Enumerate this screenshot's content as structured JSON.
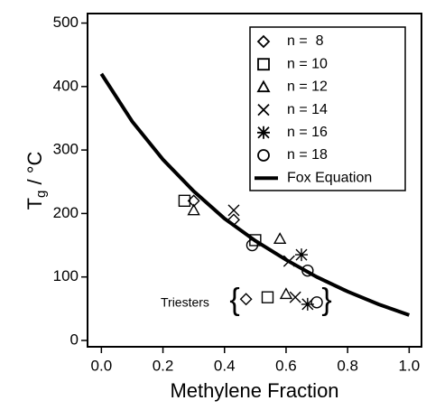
{
  "chart_data": {
    "type": "scatter",
    "x_label": "Methylene Fraction",
    "y_label": {
      "main": "T",
      "sub": "g",
      "unit": " / °C"
    },
    "xlim": [
      -0.045,
      1.04
    ],
    "ylim": [
      -10,
      515
    ],
    "xticks": [
      {
        "value": 0,
        "label": "0.0"
      },
      {
        "value": 0.2,
        "label": "0.2"
      },
      {
        "value": 0.4,
        "label": "0.4"
      },
      {
        "value": 0.6,
        "label": "0.6"
      },
      {
        "value": 0.8,
        "label": "0.8"
      },
      {
        "value": 1,
        "label": "1.0"
      }
    ],
    "yticks": [
      0,
      100,
      200,
      300,
      400,
      500
    ],
    "legend": "top-right",
    "annotation": {
      "text": "Triesters",
      "brace_open": "{",
      "brace_close": "}"
    },
    "series": [
      {
        "name": "n =  8",
        "marker": "diamond",
        "color": "#000000",
        "x": [
          0.3,
          0.43,
          0.47
        ],
        "values": [
          220,
          190,
          65
        ]
      },
      {
        "name": "n = 10",
        "marker": "square",
        "color": "#000000",
        "x": [
          0.27,
          0.5,
          0.54
        ],
        "values": [
          220,
          158,
          68
        ]
      },
      {
        "name": "n = 12",
        "marker": "triangle",
        "color": "#000000",
        "x": [
          0.3,
          0.58,
          0.6
        ],
        "values": [
          205,
          160,
          73
        ]
      },
      {
        "name": "n = 14",
        "marker": "x",
        "color": "#000000",
        "x": [
          0.43,
          0.61,
          0.63
        ],
        "values": [
          205,
          125,
          68
        ]
      },
      {
        "name": "n = 16",
        "marker": "asterisk",
        "color": "#000000",
        "x": [
          0.65,
          0.67
        ],
        "values": [
          135,
          57
        ]
      },
      {
        "name": "n = 18",
        "marker": "circle",
        "color": "#000000",
        "x": [
          0.49,
          0.67,
          0.7
        ],
        "values": [
          150,
          110,
          60
        ]
      },
      {
        "name": "Fox Equation",
        "marker": "line",
        "color": "#000000",
        "x": [
          0,
          0.1,
          0.2,
          0.3,
          0.4,
          0.5,
          0.6,
          0.7,
          0.8,
          0.9,
          1.0
        ],
        "values": [
          420,
          345,
          285,
          235,
          192,
          157,
          127,
          100,
          77,
          57,
          40
        ]
      }
    ]
  }
}
